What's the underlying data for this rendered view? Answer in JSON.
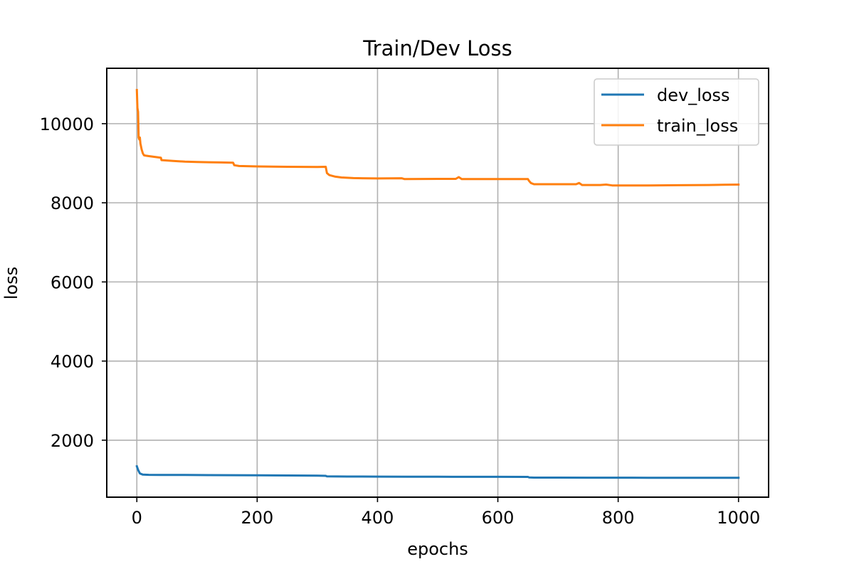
{
  "chart_data": {
    "type": "line",
    "title": "Train/Dev Loss",
    "xlabel": "epochs",
    "ylabel": "loss",
    "xlim": [
      -50,
      1050
    ],
    "ylim": [
      560,
      11400
    ],
    "xticks": [
      0,
      200,
      400,
      600,
      800,
      1000
    ],
    "xtick_labels": [
      "0",
      "200",
      "400",
      "600",
      "800",
      "1000"
    ],
    "yticks": [
      2000,
      4000,
      6000,
      8000,
      10000
    ],
    "ytick_labels": [
      "2000",
      "4000",
      "6000",
      "8000",
      "10000"
    ],
    "grid": true,
    "legend_position": "top-right",
    "series": [
      {
        "name": "dev_loss",
        "color": "#1f77b4",
        "x": [
          0,
          2,
          5,
          10,
          20,
          40,
          80,
          120,
          160,
          200,
          250,
          300,
          314,
          316,
          350,
          400,
          450,
          500,
          550,
          600,
          650,
          652,
          660,
          700,
          750,
          800,
          850,
          900,
          950,
          1000
        ],
        "y": [
          1340,
          1250,
          1160,
          1130,
          1125,
          1120,
          1120,
          1118,
          1115,
          1112,
          1108,
          1104,
          1100,
          1085,
          1082,
          1080,
          1078,
          1076,
          1075,
          1074,
          1072,
          1060,
          1055,
          1055,
          1053,
          1052,
          1051,
          1050,
          1050,
          1050
        ]
      },
      {
        "name": "train_loss",
        "color": "#ff7f0e",
        "x": [
          0,
          1,
          2,
          3,
          4,
          5,
          6,
          8,
          10,
          12,
          15,
          20,
          30,
          40,
          41,
          60,
          80,
          100,
          120,
          140,
          160,
          162,
          170,
          200,
          250,
          300,
          314,
          316,
          320,
          330,
          340,
          360,
          400,
          440,
          445,
          500,
          530,
          535,
          540,
          600,
          650,
          652,
          655,
          660,
          700,
          730,
          735,
          740,
          770,
          780,
          790,
          800,
          850,
          900,
          950,
          1000
        ],
        "y": [
          10850,
          10400,
          10300,
          9650,
          9600,
          9650,
          9500,
          9350,
          9250,
          9200,
          9190,
          9180,
          9160,
          9140,
          9080,
          9060,
          9040,
          9030,
          9025,
          9020,
          9015,
          8950,
          8930,
          8920,
          8910,
          8905,
          8910,
          8750,
          8700,
          8660,
          8640,
          8625,
          8615,
          8620,
          8600,
          8605,
          8605,
          8650,
          8600,
          8600,
          8600,
          8550,
          8500,
          8470,
          8470,
          8470,
          8500,
          8450,
          8450,
          8460,
          8440,
          8440,
          8440,
          8445,
          8450,
          8460
        ]
      }
    ]
  }
}
